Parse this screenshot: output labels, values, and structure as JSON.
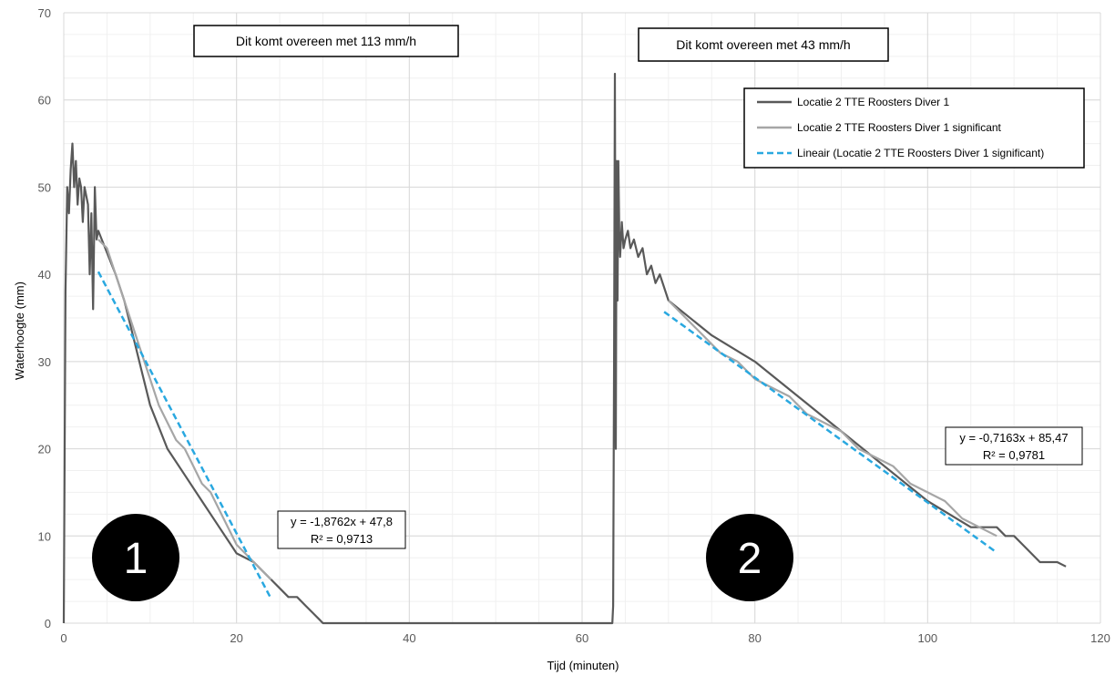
{
  "chart_data": {
    "type": "line",
    "xlabel": "Tijd (minuten)",
    "ylabel": "Waterhoogte (mm)",
    "xlim": [
      0,
      120
    ],
    "ylim": [
      0,
      70
    ],
    "xticks": [
      0,
      20,
      40,
      60,
      80,
      100,
      120
    ],
    "yticks": [
      0,
      10,
      20,
      30,
      40,
      50,
      60,
      70
    ],
    "grid": true,
    "minor_grid": true,
    "legend_position": "top-right",
    "series": [
      {
        "name": "Locatie 2 TTE Roosters Diver 1",
        "style": "solid",
        "color": "#595959",
        "x": [
          0,
          0.2,
          0.4,
          0.6,
          0.8,
          1.0,
          1.2,
          1.4,
          1.6,
          1.8,
          2.0,
          2.2,
          2.4,
          2.6,
          2.8,
          3.0,
          3.2,
          3.4,
          3.6,
          3.8,
          4.0,
          4.4,
          4.8,
          5.2,
          6,
          7,
          8,
          9,
          10,
          12,
          14,
          16,
          18,
          20,
          22,
          23,
          24,
          25,
          26,
          27,
          28,
          29,
          29.5,
          30,
          40,
          50,
          60,
          63.0,
          63.5,
          63.6,
          63.7,
          63.8,
          63.9,
          64.0,
          64.1,
          64.2,
          64.3,
          64.4,
          64.5,
          64.6,
          64.8,
          65.0,
          65.3,
          65.6,
          66.0,
          66.5,
          67,
          67.5,
          68,
          68.5,
          69,
          70,
          75,
          80,
          85,
          90,
          95,
          100,
          105,
          108,
          109,
          110,
          111,
          112,
          113,
          114,
          115,
          116
        ],
        "y": [
          0,
          38,
          50,
          47,
          52,
          55,
          50,
          53,
          48,
          51,
          50,
          46,
          50,
          49,
          48,
          40,
          47,
          36,
          50,
          44,
          45,
          44,
          43,
          42,
          40,
          37,
          33,
          29,
          25,
          20,
          17,
          14,
          11,
          8,
          7,
          6,
          5,
          4,
          3,
          3,
          2,
          1,
          0.5,
          0,
          0,
          0,
          0,
          0,
          0,
          2,
          30,
          63,
          20,
          53,
          37,
          53,
          45,
          42,
          44,
          46,
          43,
          44,
          45,
          43,
          44,
          42,
          43,
          40,
          41,
          39,
          40,
          37,
          33,
          30,
          26,
          22,
          18,
          14,
          11,
          11,
          10,
          10,
          9,
          8,
          7,
          7,
          7,
          6.5
        ]
      },
      {
        "name": "Locatie 2 TTE Roosters Diver 1 significant",
        "style": "solid",
        "color": "#a6a6a6",
        "x": [
          4,
          5,
          6,
          7,
          8,
          9,
          10,
          11,
          12,
          13,
          14,
          15,
          16,
          17,
          18,
          19,
          20,
          21,
          22,
          23,
          24,
          70,
          72,
          74,
          76,
          78,
          80,
          82,
          84,
          86,
          88,
          90,
          92,
          94,
          96,
          98,
          100,
          102,
          104,
          106,
          108
        ],
        "y": [
          44,
          43,
          40,
          37,
          34,
          31,
          28,
          25,
          23,
          21,
          20,
          18,
          16,
          15,
          13,
          11,
          9,
          8,
          7,
          6,
          5,
          37,
          35,
          33,
          31,
          30,
          28,
          27,
          26,
          24,
          23,
          22,
          20,
          19,
          18,
          16,
          15,
          14,
          12,
          11,
          10
        ]
      },
      {
        "name": "Lineair (Locatie 2 TTE Roosters Diver 1 significant)",
        "style": "dashed",
        "color": "#29a8e0",
        "segments": [
          {
            "x": [
              4,
              24
            ],
            "y": [
              40.3,
              2.8
            ]
          },
          {
            "x": [
              69.5,
              108
            ],
            "y": [
              35.7,
              8.1
            ]
          }
        ]
      }
    ],
    "annotations": {
      "box1": "Dit komt overeen met 113 mm/h",
      "box2": "Dit komt overeen met 43 mm/h",
      "eq1_line1": "y = -1,8762x + 47,8",
      "eq1_line2": "R² = 0,9713",
      "eq2_line1": "y = -0,7163x + 85,47",
      "eq2_line2": "R² = 0,9781",
      "marker1": "1",
      "marker2": "2"
    }
  }
}
